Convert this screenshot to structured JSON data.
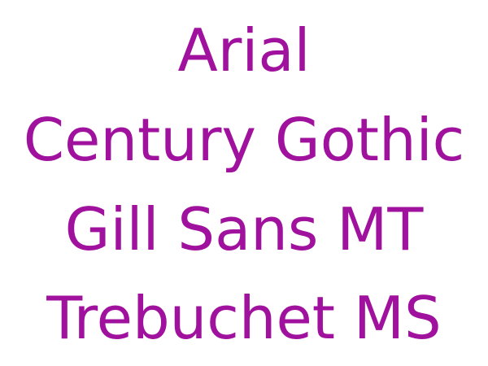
{
  "text_color": "#a0119e",
  "font_names": [
    "Arial",
    "Century Gothic",
    "Gill Sans MT",
    "Trebuchet MS"
  ]
}
